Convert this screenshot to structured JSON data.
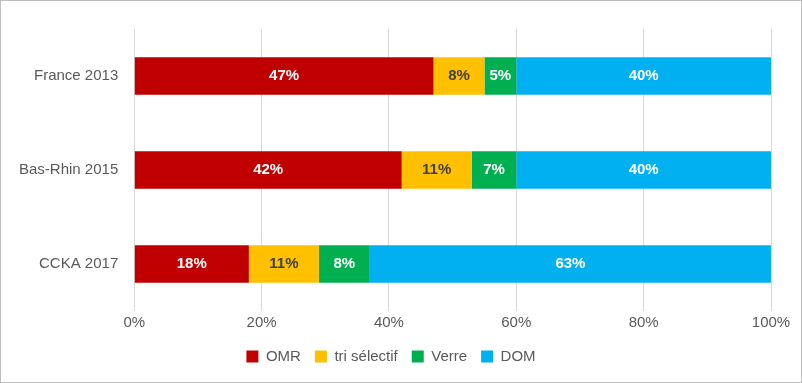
{
  "chart_data": {
    "type": "bar",
    "orientation": "horizontal",
    "stacked": true,
    "categories": [
      "France 2013",
      "Bas-Rhin 2015",
      "CCKA 2017"
    ],
    "series": [
      {
        "name": "OMR",
        "color": "#c00000",
        "values": [
          47,
          42,
          18
        ],
        "value_labels": [
          "47%",
          "42%",
          "18%"
        ]
      },
      {
        "name": "tri sélectif",
        "color": "#ffc000",
        "values": [
          8,
          11,
          11
        ],
        "value_labels": [
          "8%",
          "11%",
          "11%"
        ]
      },
      {
        "name": "Verre",
        "color": "#00b050",
        "values": [
          5,
          7,
          8
        ],
        "value_labels": [
          "5%",
          "7%",
          "8%"
        ]
      },
      {
        "name": "DOM",
        "color": "#00b0f0",
        "values": [
          40,
          40,
          63
        ],
        "value_labels": [
          "40%",
          "40%",
          "63%"
        ]
      }
    ],
    "xlim": [
      0,
      100
    ],
    "xticks": [
      {
        "value": 0,
        "label": "0%"
      },
      {
        "value": 20,
        "label": "20%"
      },
      {
        "value": 40,
        "label": "40%"
      },
      {
        "value": 60,
        "label": "60%"
      },
      {
        "value": 80,
        "label": "80%"
      },
      {
        "value": 100,
        "label": "100%"
      }
    ],
    "grid": true,
    "data_labels": true,
    "legend": "bottom"
  }
}
